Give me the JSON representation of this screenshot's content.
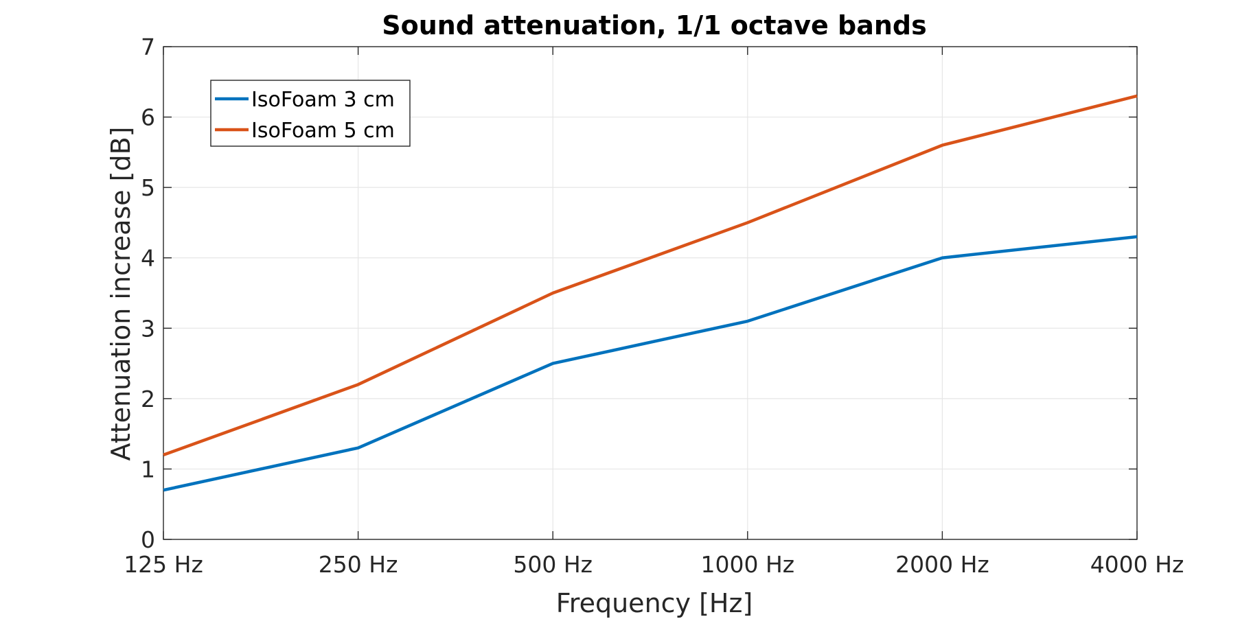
{
  "chart_data": {
    "type": "line",
    "title": "Sound attenuation, 1/1 octave bands",
    "xlabel": "Frequency [Hz]",
    "ylabel": "Attenuation increase [dB]",
    "categories": [
      "125 Hz",
      "250 Hz",
      "500 Hz",
      "1000 Hz",
      "2000 Hz",
      "4000 Hz"
    ],
    "ylim": [
      0,
      7
    ],
    "yticks": [
      "0",
      "1",
      "2",
      "3",
      "4",
      "5",
      "6",
      "7"
    ],
    "grid": true,
    "legend_position": "top-left",
    "series": [
      {
        "name": "IsoFoam 3 cm",
        "color": "#0072BD",
        "values": [
          0.7,
          1.3,
          2.5,
          3.1,
          4.0,
          4.3
        ]
      },
      {
        "name": "IsoFoam 5 cm",
        "color": "#D95319",
        "values": [
          1.2,
          2.2,
          3.5,
          4.5,
          5.6,
          6.3
        ]
      }
    ]
  }
}
